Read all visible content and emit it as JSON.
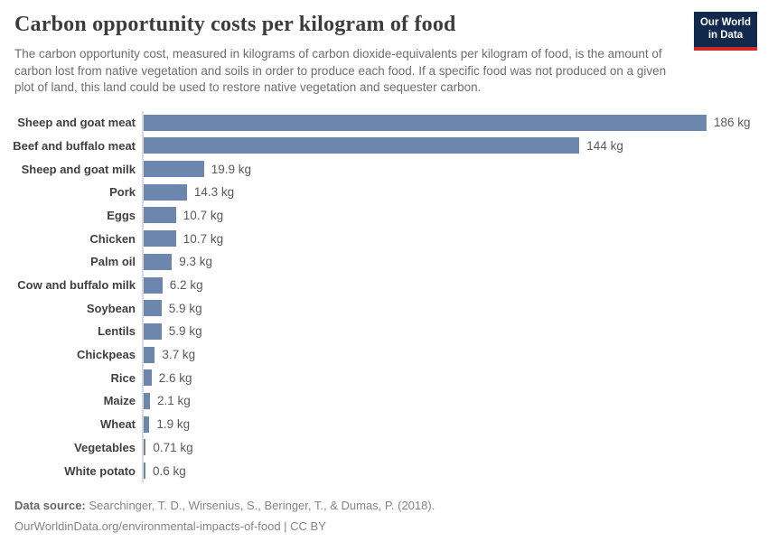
{
  "header": {
    "title": "Carbon opportunity costs per kilogram of food",
    "subtitle": "The carbon opportunity cost, measured in kilograms of carbon dioxide-equivalents per kilogram of food, is the amount of carbon lost from native vegetation and soils in order to produce each food. If a specific food was not produced on a given plot of land, this land could be used to restore native vegetation and sequester carbon.",
    "logo": {
      "line1": "Our World",
      "line2": "in Data",
      "background_color": "#12294e",
      "stripe_color": "#cf2a24"
    }
  },
  "chart_data": {
    "type": "bar",
    "orientation": "horizontal",
    "title": "Carbon opportunity costs per kilogram of food",
    "xlabel": "",
    "ylabel": "",
    "unit": "kg CO2-equivalents per kg of food",
    "xlim": [
      0,
      186
    ],
    "grid": false,
    "legend": false,
    "bar_color": "#6d86ae",
    "categories": [
      "Sheep and goat meat",
      "Beef and buffalo meat",
      "Sheep and goat milk",
      "Pork",
      "Eggs",
      "Chicken",
      "Palm oil",
      "Cow and buffalo milk",
      "Soybean",
      "Lentils",
      "Chickpeas",
      "Rice",
      "Maize",
      "Wheat",
      "Vegetables",
      "White potato"
    ],
    "values": [
      186,
      144,
      19.9,
      14.3,
      10.7,
      10.7,
      9.3,
      6.2,
      5.9,
      5.9,
      3.7,
      2.6,
      2.1,
      1.9,
      0.71,
      0.6
    ],
    "value_labels": [
      "186 kg",
      "144 kg",
      "19.9 kg",
      "14.3 kg",
      "10.7 kg",
      "10.7 kg",
      "9.3 kg",
      "6.2 kg",
      "5.9 kg",
      "5.9 kg",
      "3.7 kg",
      "2.6 kg",
      "2.1 kg",
      "1.9 kg",
      "0.71 kg",
      "0.6 kg"
    ]
  },
  "footer": {
    "datasource_label": "Data source:",
    "datasource_text": " Searchinger, T. D., Wirsenius, S., Beringer, T., & Dumas, P. (2018).",
    "link_line": "OurWorldinData.org/environmental-impacts-of-food | CC BY"
  }
}
